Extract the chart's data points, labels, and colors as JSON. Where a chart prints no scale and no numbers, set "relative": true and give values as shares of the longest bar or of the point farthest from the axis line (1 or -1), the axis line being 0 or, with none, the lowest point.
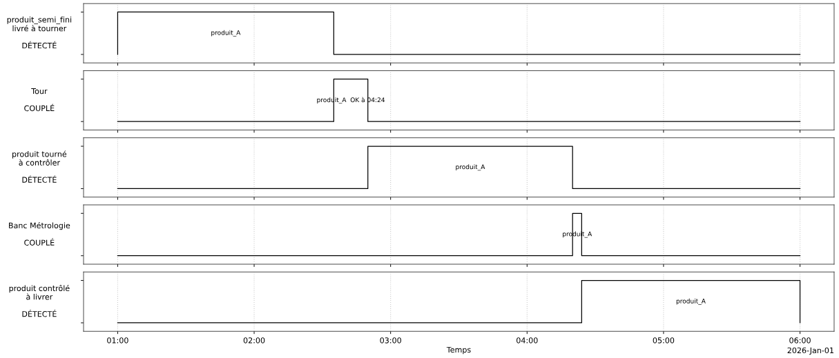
{
  "chart_data": [
    {
      "type": "step",
      "ylabel": "produit_semi_fini\nlivré à tourner\n\nDÉTECTÉ",
      "x": [
        "2026-01-01T01:00",
        "2026-01-01T01:00",
        "2026-01-01T02:35",
        "2026-01-01T06:00"
      ],
      "values": [
        0,
        1,
        0,
        0
      ],
      "color": "#000000",
      "relative": true,
      "xlim": [
        "2026-01-01T00:45",
        "2026-01-01T06:15"
      ],
      "grid": "x",
      "tick_labels": false,
      "annotations": [
        "produit_A"
      ]
    },
    {
      "type": "step",
      "ylabel": "Tour\n\nCOUPLÉ",
      "x": [
        "2026-01-01T01:00",
        "2026-01-01T02:35",
        "2026-01-01T02:50",
        "2026-01-01T06:00"
      ],
      "values": [
        0,
        1,
        0,
        0
      ],
      "color": "#000000",
      "relative": true,
      "xlim": [
        "2026-01-01T00:45",
        "2026-01-01T06:15"
      ],
      "grid": "x",
      "tick_labels": false,
      "annotations": [
        "produit_A  OK à 04:24"
      ]
    },
    {
      "type": "step",
      "ylabel": "produit tourné\nà contrôler\n\nDÉTECTÉ",
      "x": [
        "2026-01-01T01:00",
        "2026-01-01T02:50",
        "2026-01-01T04:20",
        "2026-01-01T06:00"
      ],
      "values": [
        0,
        1,
        0,
        0
      ],
      "color": "#000000",
      "relative": true,
      "xlim": [
        "2026-01-01T00:45",
        "2026-01-01T06:15"
      ],
      "grid": "x",
      "tick_labels": false,
      "annotations": [
        "produit_A"
      ]
    },
    {
      "type": "step",
      "ylabel": "Banc Métrologie\n\nCOUPLÉ",
      "x": [
        "2026-01-01T01:00",
        "2026-01-01T04:20",
        "2026-01-01T04:24",
        "2026-01-01T06:00"
      ],
      "values": [
        0,
        1,
        0,
        0
      ],
      "color": "#000000",
      "relative": true,
      "xlim": [
        "2026-01-01T00:45",
        "2026-01-01T06:15"
      ],
      "grid": "x",
      "tick_labels": false,
      "annotations": [
        "produit_A"
      ]
    },
    {
      "type": "step",
      "ylabel": "produit contrôlé\nà livrer\n\nDÉTECTÉ",
      "xlabel": "Temps",
      "x": [
        "2026-01-01T01:00",
        "2026-01-01T04:24",
        "2026-01-01T06:00",
        "2026-01-01T06:00"
      ],
      "values": [
        0,
        1,
        0,
        0
      ],
      "color": "#000000",
      "relative": true,
      "xlim": [
        "2026-01-01T00:45",
        "2026-01-01T06:15"
      ],
      "xticks": [
        {
          "value": "2026-01-01T01:00",
          "label": "01:00"
        },
        {
          "value": "2026-01-01T02:00",
          "label": "02:00"
        },
        {
          "value": "2026-01-01T03:00",
          "label": "03:00"
        },
        {
          "value": "2026-01-01T04:00",
          "label": "04:00"
        },
        {
          "value": "2026-01-01T05:00",
          "label": "05:00"
        },
        {
          "value": "2026-01-01T06:00",
          "label": "06:00"
        }
      ],
      "grid": "x",
      "tick_labels": "x",
      "annotations": [
        "produit_A",
        "2026-Jan-01"
      ]
    }
  ]
}
